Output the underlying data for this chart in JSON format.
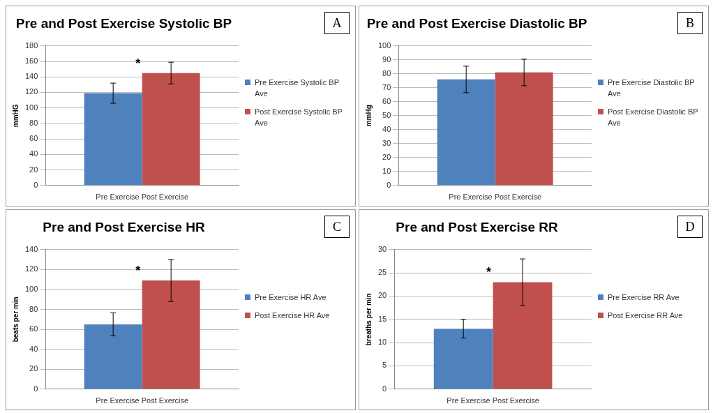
{
  "chart_data": [
    {
      "type": "bar",
      "title": "Pre and Post Exercise Systolic BP",
      "ylabel": "mmHG",
      "categories": [
        "Pre Exercise Post Exercise"
      ],
      "ylim": [
        0,
        180
      ],
      "yticks": [
        0,
        20,
        40,
        60,
        80,
        100,
        120,
        140,
        160,
        180
      ],
      "grid": "y",
      "legend": "right",
      "annotations": [
        "A",
        "*"
      ],
      "series": [
        {
          "name": "Pre Exercise Systolic BP Ave",
          "color": "#4f81bd",
          "values": [
            119
          ],
          "errors": [
            13
          ]
        },
        {
          "name": "Post Exercise Systolic BP Ave",
          "color": "#c0504d",
          "values": [
            145
          ],
          "errors": [
            14
          ]
        }
      ]
    },
    {
      "type": "bar",
      "title": "Pre and Post Exercise Diastolic BP",
      "ylabel": "mmHg",
      "categories": [
        "Pre Exercise Post Exercise"
      ],
      "ylim": [
        0,
        100
      ],
      "yticks": [
        0,
        10,
        20,
        30,
        40,
        50,
        60,
        70,
        80,
        90,
        100
      ],
      "grid": "y",
      "legend": "right",
      "annotations": [
        "B"
      ],
      "series": [
        {
          "name": "Pre Exercise Diastolic BP Ave",
          "color": "#4f81bd",
          "values": [
            76
          ],
          "errors": [
            9.5
          ]
        },
        {
          "name": "Post Exercise Diastolic BP Ave",
          "color": "#c0504d",
          "values": [
            81
          ],
          "errors": [
            9.5
          ]
        }
      ]
    },
    {
      "type": "bar",
      "title": "Pre and Post Exercise HR",
      "ylabel": "beats per min",
      "categories": [
        "Pre Exercise Post Exercise"
      ],
      "ylim": [
        0,
        140
      ],
      "yticks": [
        0,
        20,
        40,
        60,
        80,
        100,
        120,
        140
      ],
      "grid": "y",
      "legend": "right",
      "annotations": [
        "C",
        "*"
      ],
      "series": [
        {
          "name": "Pre Exercise HR Ave",
          "color": "#4f81bd",
          "values": [
            65
          ],
          "errors": [
            11.5
          ]
        },
        {
          "name": "Post Exercise HR Ave",
          "color": "#c0504d",
          "values": [
            109
          ],
          "errors": [
            21
          ]
        }
      ]
    },
    {
      "type": "bar",
      "title": "Pre and Post Exercise RR",
      "ylabel": "breaths per min",
      "categories": [
        "Pre Exercise Post Exercise"
      ],
      "ylim": [
        0,
        30
      ],
      "yticks": [
        0,
        5,
        10,
        15,
        20,
        25,
        30
      ],
      "grid": "y",
      "legend": "right",
      "annotations": [
        "D",
        "*"
      ],
      "series": [
        {
          "name": "Pre Exercise RR Ave",
          "color": "#4f81bd",
          "values": [
            13
          ],
          "errors": [
            2
          ]
        },
        {
          "name": "Post Exercise RR Ave",
          "color": "#c0504d",
          "values": [
            23
          ],
          "errors": [
            5
          ]
        }
      ]
    }
  ]
}
